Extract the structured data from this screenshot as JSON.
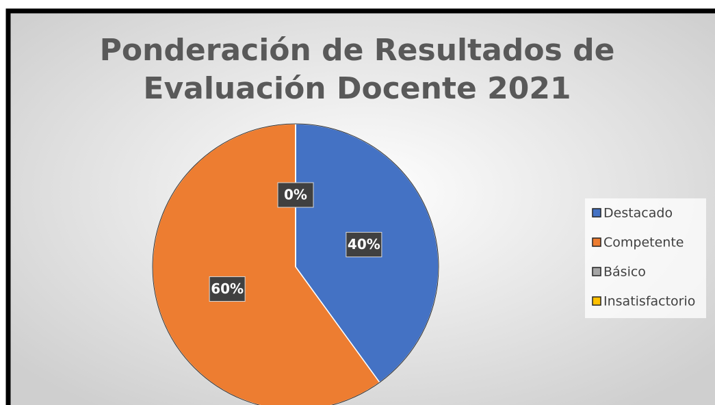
{
  "chart_data": {
    "type": "pie",
    "title": "Ponderación de Resultados de Evaluación Docente 2021",
    "categories": [
      "Destacado",
      "Competente",
      "Básico",
      "Insatisfactorio"
    ],
    "values": [
      40,
      60,
      0,
      0
    ],
    "value_labels": [
      "40%",
      "60%",
      "0%",
      null
    ],
    "colors": [
      "#4472c4",
      "#ed7d31",
      "#a5a5a5",
      "#ffc000"
    ],
    "legend": "right"
  }
}
